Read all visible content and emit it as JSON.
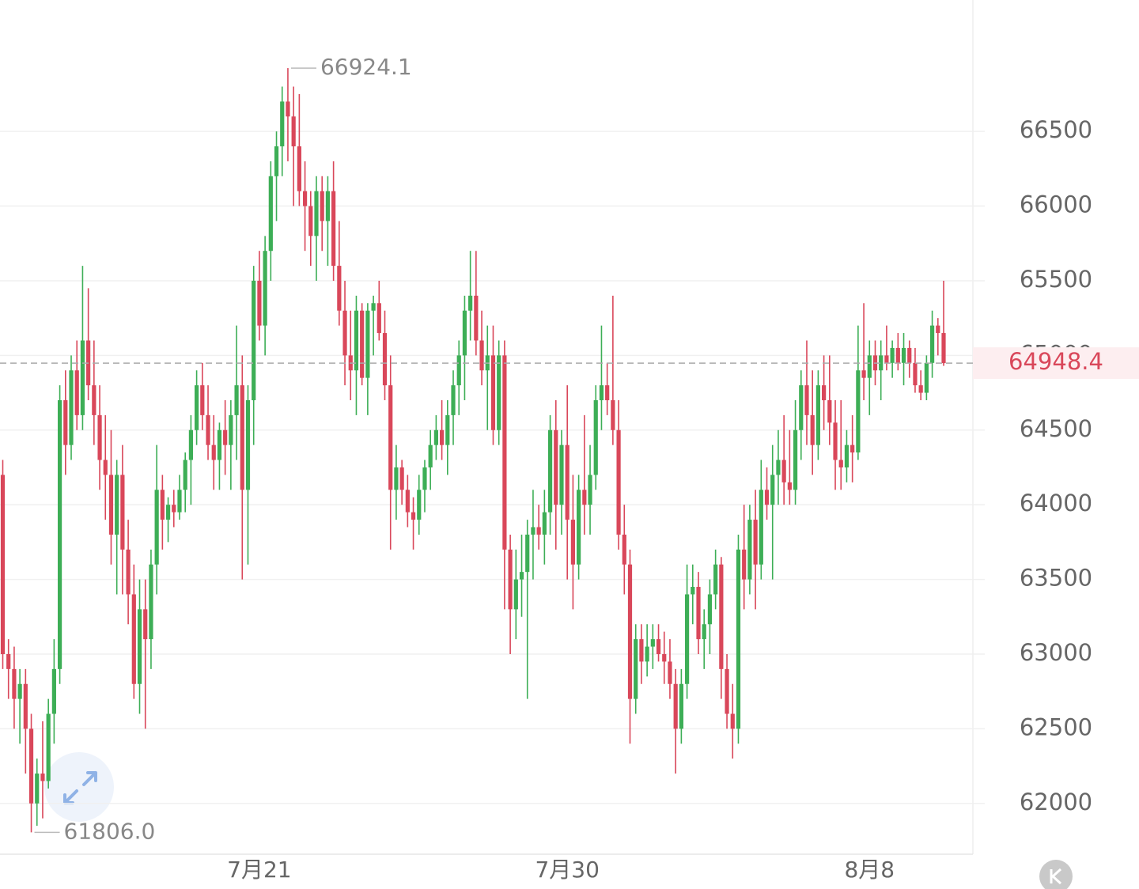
{
  "chart_data": {
    "type": "candlestick",
    "up_color": "#3dae56",
    "down_color": "#d9475a",
    "ylim": [
      61660,
      67380
    ],
    "yticks": [
      62000,
      62500,
      63000,
      63500,
      64000,
      64500,
      65000,
      65500,
      66000,
      66500
    ],
    "grid": true,
    "max_label": 66924.1,
    "min_label": {
      "value": 61806,
      "label": "61806.0"
    },
    "last_price": 64948.4,
    "categories": [
      null,
      null,
      null,
      null,
      null,
      null,
      null,
      null,
      null,
      null,
      null,
      null,
      null,
      null,
      null,
      null,
      null,
      null,
      null,
      null,
      null,
      null,
      null,
      null,
      null,
      null,
      null,
      null,
      null,
      null,
      null,
      null,
      null,
      null,
      null,
      null,
      null,
      null,
      null,
      null,
      null,
      null,
      null,
      null,
      null,
      "7月21",
      null,
      null,
      null,
      null,
      null,
      null,
      null,
      null,
      null,
      null,
      null,
      null,
      null,
      null,
      null,
      null,
      null,
      null,
      null,
      null,
      null,
      null,
      null,
      null,
      null,
      null,
      null,
      null,
      null,
      null,
      null,
      null,
      null,
      null,
      null,
      null,
      null,
      null,
      null,
      null,
      null,
      null,
      null,
      null,
      null,
      null,
      null,
      null,
      null,
      null,
      null,
      null,
      null,
      "7月30",
      null,
      null,
      null,
      null,
      null,
      null,
      null,
      null,
      null,
      null,
      null,
      null,
      null,
      null,
      null,
      null,
      null,
      null,
      null,
      null,
      null,
      null,
      null,
      null,
      null,
      null,
      null,
      null,
      null,
      null,
      null,
      null,
      null,
      null,
      null,
      null,
      null,
      null,
      null,
      null,
      null,
      null,
      null,
      null,
      null,
      null,
      null,
      null,
      null,
      null,
      null,
      null,
      "8月8",
      null,
      null,
      null,
      null,
      null,
      null,
      null,
      null,
      null,
      null,
      null,
      null,
      null
    ],
    "candles": [
      [
        64200,
        64300,
        62900,
        63000
      ],
      [
        63000,
        63100,
        62700,
        62900
      ],
      [
        62900,
        63050,
        62500,
        62700
      ],
      [
        62700,
        62900,
        62400,
        62800
      ],
      [
        62800,
        62900,
        62200,
        62500
      ],
      [
        62500,
        62600,
        61806,
        62000
      ],
      [
        62000,
        62300,
        61850,
        62200
      ],
      [
        62200,
        62550,
        61900,
        62150
      ],
      [
        62150,
        62700,
        62100,
        62600
      ],
      [
        62600,
        63100,
        62400,
        62900
      ],
      [
        62900,
        64800,
        62800,
        64700
      ],
      [
        64700,
        64900,
        64200,
        64400
      ],
      [
        64400,
        65000,
        64300,
        64900
      ],
      [
        64900,
        65100,
        64500,
        64600
      ],
      [
        64600,
        65600,
        64500,
        65100
      ],
      [
        65100,
        65450,
        64700,
        64800
      ],
      [
        64800,
        65100,
        64400,
        64600
      ],
      [
        64600,
        64800,
        64100,
        64300
      ],
      [
        64300,
        64600,
        63900,
        64200
      ],
      [
        64200,
        64500,
        63600,
        63800
      ],
      [
        63800,
        64300,
        63400,
        64200
      ],
      [
        64200,
        64400,
        63400,
        63700
      ],
      [
        63700,
        63900,
        63200,
        63400
      ],
      [
        63400,
        63600,
        62700,
        62800
      ],
      [
        62800,
        63500,
        62600,
        63300
      ],
      [
        63300,
        63500,
        62500,
        63100
      ],
      [
        63100,
        63700,
        62900,
        63600
      ],
      [
        63600,
        64400,
        63400,
        64100
      ],
      [
        64100,
        64200,
        63700,
        63900
      ],
      [
        63900,
        64050,
        63750,
        64000
      ],
      [
        64000,
        64100,
        63850,
        63950
      ],
      [
        63950,
        64200,
        63900,
        64100
      ],
      [
        64100,
        64350,
        63950,
        64300
      ],
      [
        64300,
        64600,
        64000,
        64500
      ],
      [
        64500,
        64900,
        64400,
        64800
      ],
      [
        64800,
        64950,
        64500,
        64600
      ],
      [
        64600,
        64800,
        64300,
        64400
      ],
      [
        64400,
        64600,
        64100,
        64300
      ],
      [
        64300,
        64550,
        64100,
        64500
      ],
      [
        64500,
        64700,
        64200,
        64400
      ],
      [
        64400,
        64700,
        64100,
        64600
      ],
      [
        64600,
        65200,
        64300,
        64800
      ],
      [
        64800,
        65000,
        63500,
        64100
      ],
      [
        64100,
        64800,
        63600,
        64700
      ],
      [
        64700,
        65600,
        64400,
        65500
      ],
      [
        65500,
        65700,
        65100,
        65200
      ],
      [
        65200,
        65800,
        65000,
        65700
      ],
      [
        65700,
        66300,
        65500,
        66200
      ],
      [
        66200,
        66500,
        65900,
        66400
      ],
      [
        66400,
        66800,
        66200,
        66700
      ],
      [
        66700,
        66924.1,
        66300,
        66600
      ],
      [
        66600,
        66800,
        66000,
        66400
      ],
      [
        66400,
        66750,
        66000,
        66100
      ],
      [
        66100,
        66300,
        65700,
        66000
      ],
      [
        66000,
        66100,
        65600,
        65800
      ],
      [
        65800,
        66200,
        65500,
        66100
      ],
      [
        66100,
        66200,
        65700,
        65900
      ],
      [
        65900,
        66200,
        65600,
        66100
      ],
      [
        66100,
        66300,
        65500,
        65600
      ],
      [
        65600,
        65900,
        65200,
        65300
      ],
      [
        65300,
        65500,
        64800,
        65000
      ],
      [
        65000,
        65300,
        64700,
        64900
      ],
      [
        64900,
        65400,
        64600,
        65300
      ],
      [
        65300,
        65350,
        64800,
        64850
      ],
      [
        64850,
        65350,
        64600,
        65300
      ],
      [
        65300,
        65400,
        65000,
        65350
      ],
      [
        65350,
        65500,
        65100,
        65150
      ],
      [
        65150,
        65300,
        64700,
        64800
      ],
      [
        64800,
        65000,
        63700,
        64100
      ],
      [
        64100,
        64400,
        63900,
        64250
      ],
      [
        64250,
        64300,
        64000,
        64100
      ],
      [
        64100,
        64200,
        63850,
        63950
      ],
      [
        63950,
        64050,
        63700,
        63900
      ],
      [
        63900,
        64200,
        63800,
        64100
      ],
      [
        64100,
        64300,
        63950,
        64250
      ],
      [
        64250,
        64500,
        64100,
        64400
      ],
      [
        64400,
        64600,
        64300,
        64500
      ],
      [
        64500,
        64700,
        64300,
        64400
      ],
      [
        64400,
        64700,
        64200,
        64600
      ],
      [
        64600,
        64900,
        64400,
        64800
      ],
      [
        64800,
        65100,
        64600,
        65000
      ],
      [
        65000,
        65400,
        64700,
        65300
      ],
      [
        65300,
        65700,
        65100,
        65400
      ],
      [
        65400,
        65700,
        65000,
        65100
      ],
      [
        65100,
        65300,
        64800,
        64900
      ],
      [
        64900,
        65200,
        64500,
        65000
      ],
      [
        65000,
        65200,
        64400,
        64500
      ],
      [
        64500,
        65100,
        64400,
        65000
      ],
      [
        65000,
        65100,
        63300,
        63700
      ],
      [
        63700,
        63800,
        63000,
        63300
      ],
      [
        63300,
        63700,
        63100,
        63500
      ],
      [
        63500,
        63800,
        63250,
        63550
      ],
      [
        63550,
        63900,
        62700,
        63800
      ],
      [
        63800,
        64100,
        63500,
        63850
      ],
      [
        63850,
        64000,
        63700,
        63800
      ],
      [
        63800,
        64100,
        63600,
        63950
      ],
      [
        63950,
        64600,
        63800,
        64500
      ],
      [
        64500,
        64700,
        63700,
        64000
      ],
      [
        64000,
        64500,
        63800,
        64400
      ],
      [
        64400,
        64800,
        63500,
        63900
      ],
      [
        63900,
        64200,
        63300,
        63600
      ],
      [
        63600,
        64200,
        63500,
        64100
      ],
      [
        64100,
        64600,
        63800,
        64000
      ],
      [
        64000,
        64400,
        63800,
        64200
      ],
      [
        64200,
        64800,
        64100,
        64700
      ],
      [
        64700,
        65200,
        64500,
        64800
      ],
      [
        64800,
        64950,
        64600,
        64700
      ],
      [
        64700,
        65400,
        64400,
        64500
      ],
      [
        64500,
        64700,
        63700,
        63800
      ],
      [
        63800,
        64000,
        63400,
        63600
      ],
      [
        63600,
        63700,
        62400,
        62700
      ],
      [
        62700,
        63200,
        62600,
        63100
      ],
      [
        63100,
        63200,
        62800,
        62950
      ],
      [
        62950,
        63200,
        62850,
        63050
      ],
      [
        63050,
        63200,
        62900,
        63100
      ],
      [
        63100,
        63200,
        62950,
        63000
      ],
      [
        63000,
        63150,
        62800,
        62950
      ],
      [
        62950,
        63100,
        62700,
        62800
      ],
      [
        62800,
        62900,
        62200,
        62500
      ],
      [
        62500,
        62900,
        62400,
        62800
      ],
      [
        62800,
        63600,
        62700,
        63400
      ],
      [
        63400,
        63600,
        63200,
        63450
      ],
      [
        63450,
        63550,
        63000,
        63100
      ],
      [
        63100,
        63300,
        62900,
        63200
      ],
      [
        63200,
        63500,
        63000,
        63400
      ],
      [
        63400,
        63700,
        63300,
        63600
      ],
      [
        63600,
        63650,
        62700,
        62900
      ],
      [
        62900,
        63000,
        62500,
        62600
      ],
      [
        62600,
        62800,
        62300,
        62500
      ],
      [
        62500,
        63800,
        62400,
        63700
      ],
      [
        63700,
        64000,
        63300,
        63500
      ],
      [
        63500,
        64000,
        63400,
        63900
      ],
      [
        63900,
        64100,
        63300,
        63600
      ],
      [
        63600,
        64300,
        63500,
        64100
      ],
      [
        64100,
        64250,
        63900,
        64000
      ],
      [
        64000,
        64400,
        63500,
        64200
      ],
      [
        64200,
        64500,
        64000,
        64300
      ],
      [
        64300,
        64600,
        64000,
        64150
      ],
      [
        64150,
        64500,
        64000,
        64100
      ],
      [
        64100,
        64700,
        64000,
        64500
      ],
      [
        64500,
        64900,
        64300,
        64800
      ],
      [
        64800,
        65100,
        64400,
        64600
      ],
      [
        64600,
        64900,
        64200,
        64400
      ],
      [
        64400,
        64900,
        64300,
        64800
      ],
      [
        64800,
        65000,
        64500,
        64700
      ],
      [
        64700,
        65000,
        64400,
        64550
      ],
      [
        64550,
        64700,
        64100,
        64300
      ],
      [
        64300,
        64700,
        64100,
        64250
      ],
      [
        64250,
        64500,
        64150,
        64400
      ],
      [
        64400,
        64600,
        64150,
        64350
      ],
      [
        64350,
        65200,
        64300,
        64900
      ],
      [
        64900,
        65350,
        64700,
        64850
      ],
      [
        64850,
        65100,
        64600,
        65000
      ],
      [
        65000,
        65100,
        64800,
        64900
      ],
      [
        64900,
        65100,
        64700,
        65000
      ],
      [
        65000,
        65200,
        64900,
        64950
      ],
      [
        64950,
        65100,
        64850,
        65050
      ],
      [
        65050,
        65150,
        64900,
        64950
      ],
      [
        64950,
        65150,
        64800,
        65050
      ],
      [
        65050,
        65100,
        64850,
        64950
      ],
      [
        64950,
        65050,
        64750,
        64800
      ],
      [
        64800,
        64900,
        64700,
        64750
      ],
      [
        64750,
        65000,
        64700,
        64950
      ],
      [
        64950,
        65300,
        64850,
        65200
      ],
      [
        65200,
        65250,
        65000,
        65150
      ],
      [
        65150,
        65500,
        64930,
        64948.4
      ]
    ]
  }
}
